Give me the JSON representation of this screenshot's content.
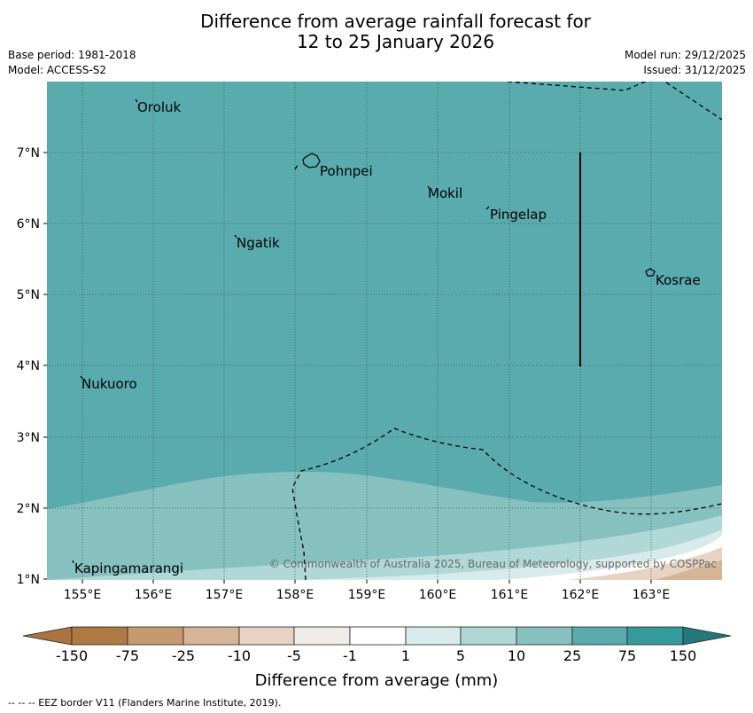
{
  "title": {
    "line1": "Difference from average rainfall forecast for",
    "line2": "12 to 25 January 2026"
  },
  "meta_left": {
    "base_period": "Base period: 1981-2018",
    "model": "Model: ACCESS-S2"
  },
  "meta_right": {
    "model_run": "Model run: 29/12/2025",
    "issued": "Issued: 31/12/2025"
  },
  "map": {
    "lon_ticks": [
      "155°E",
      "156°E",
      "157°E",
      "158°E",
      "159°E",
      "160°E",
      "161°E",
      "162°E",
      "163°E"
    ],
    "lat_ticks": [
      "7°N",
      "6°N",
      "5°N",
      "4°N",
      "3°N",
      "2°N",
      "1°N"
    ],
    "places": [
      "Oroluk",
      "Pohnpei",
      "Mokil",
      "Pingelap",
      "Ngatik",
      "Kosrae",
      "Nukuoro",
      "Kapingamarangi"
    ],
    "copyright": "© Commonwealth of Australia 2025, Bureau of Meteorology, supported by COSPPac"
  },
  "colorbar": {
    "ticks": [
      "-150",
      "-75",
      "-25",
      "-10",
      "-5",
      "-1",
      "1",
      "5",
      "10",
      "25",
      "75",
      "150"
    ],
    "colors": [
      "#a9743e",
      "#ae7a41",
      "#c49a6e",
      "#d6b497",
      "#e6d3c3",
      "#efece7",
      "#ffffff",
      "#d8ebea",
      "#b0d8d6",
      "#86c0bf",
      "#5aabad",
      "#349a9c",
      "#217979"
    ],
    "label": "Difference from average (mm)"
  },
  "colors": {
    "field_main": "#5aabad",
    "field_band_25": "#86c0bf",
    "field_band_10": "#b0d8d6",
    "field_band_5": "#d8ebea",
    "field_dry_light": "#e6d3c3",
    "field_dry_mid": "#d6b497"
  },
  "footer": "--  --  -- EEZ border V11 (Flanders Marine Institute, 2019)."
}
